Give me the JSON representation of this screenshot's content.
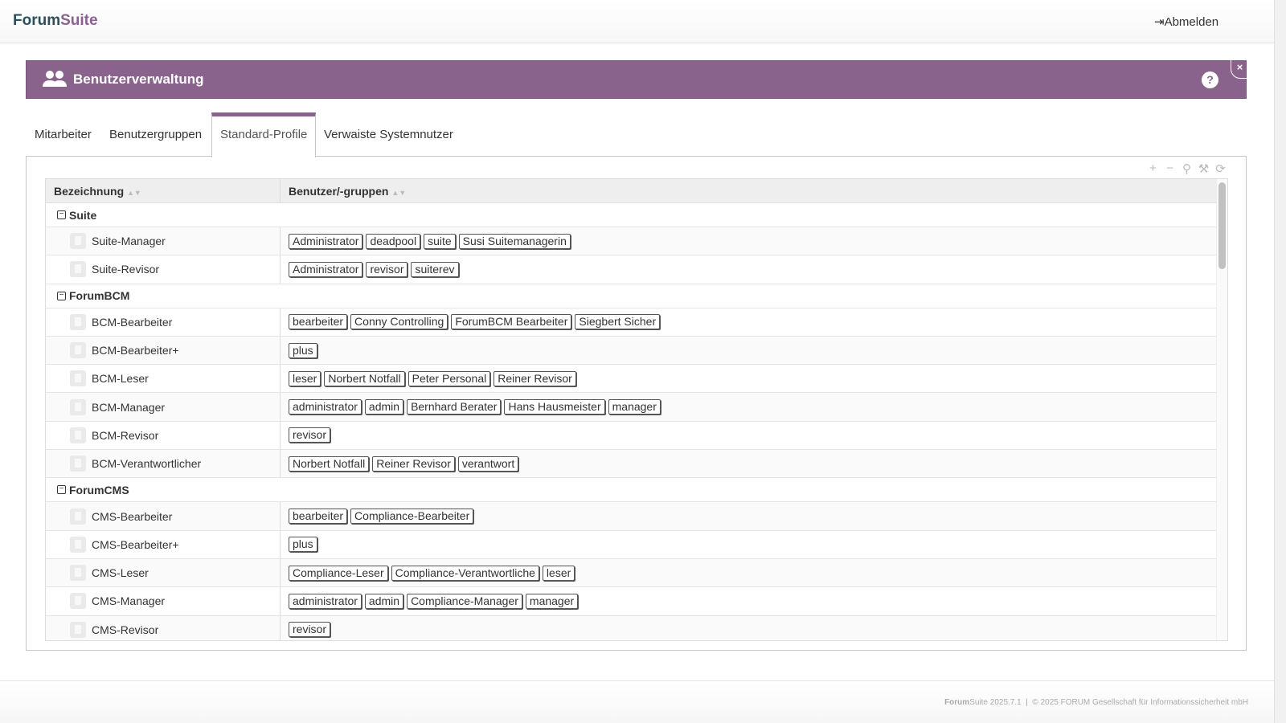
{
  "app": {
    "brand_a": "Forum",
    "brand_b": "Suite",
    "logout": "Abmelden",
    "accent": "#8a638c"
  },
  "module": {
    "title": "Benutzerverwaltung",
    "help": "?",
    "close": "×"
  },
  "tabs": [
    {
      "label": "Mitarbeiter"
    },
    {
      "label": "Benutzergruppen"
    },
    {
      "label": "Standard-Profile",
      "active": true
    },
    {
      "label": "Verwaiste Systemnutzer"
    }
  ],
  "toolbar": {
    "add": "+",
    "remove": "−",
    "search": "⚲",
    "settings": "⚒",
    "refresh": "⟳"
  },
  "grid": {
    "col1": "Bezeichnung",
    "col2": "Benutzer/-gruppen",
    "groups": [
      {
        "name": "Suite",
        "rows": [
          {
            "name": "Suite-Manager",
            "members": [
              "Administrator",
              "deadpool",
              "suite",
              "Susi Suitemanagerin"
            ]
          },
          {
            "name": "Suite-Revisor",
            "members": [
              "Administrator",
              "revisor",
              "suiterev"
            ]
          }
        ]
      },
      {
        "name": "ForumBCM",
        "rows": [
          {
            "name": "BCM-Bearbeiter",
            "members": [
              "bearbeiter",
              "Conny Controlling",
              "ForumBCM Bearbeiter",
              "Siegbert Sicher"
            ]
          },
          {
            "name": "BCM-Bearbeiter+",
            "members": [
              "plus"
            ]
          },
          {
            "name": "BCM-Leser",
            "members": [
              "leser",
              "Norbert Notfall",
              "Peter Personal",
              "Reiner Revisor"
            ]
          },
          {
            "name": "BCM-Manager",
            "members": [
              "administrator",
              "admin",
              "Bernhard Berater",
              "Hans Hausmeister",
              "manager"
            ]
          },
          {
            "name": "BCM-Revisor",
            "members": [
              "revisor"
            ]
          },
          {
            "name": "BCM-Verantwortlicher",
            "members": [
              "Norbert Notfall",
              "Reiner Revisor",
              "verantwort"
            ]
          }
        ]
      },
      {
        "name": "ForumCMS",
        "rows": [
          {
            "name": "CMS-Bearbeiter",
            "members": [
              "bearbeiter",
              "Compliance-Bearbeiter"
            ]
          },
          {
            "name": "CMS-Bearbeiter+",
            "members": [
              "plus"
            ]
          },
          {
            "name": "CMS-Leser",
            "members": [
              "Compliance-Leser",
              "Compliance-Verantwortliche",
              "leser"
            ]
          },
          {
            "name": "CMS-Manager",
            "members": [
              "administrator",
              "admin",
              "Compliance-Manager",
              "manager"
            ]
          },
          {
            "name": "CMS-Revisor",
            "members": [
              "revisor"
            ]
          }
        ]
      }
    ]
  },
  "footer": {
    "brand_a": "Forum",
    "brand_b": "Suite 2025.7.1",
    "sep": "|",
    "copyright": "© 2025 FORUM Gesellschaft für Informationssicherheit mbH"
  }
}
